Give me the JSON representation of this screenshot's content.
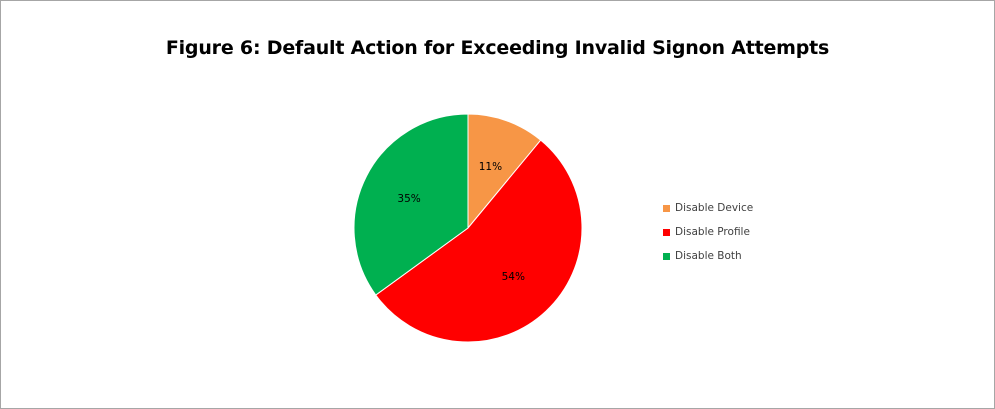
{
  "chart_data": {
    "type": "pie",
    "title": "Figure 6: Default Action for Exceeding Invalid Signon Attempts",
    "legend_position": "right",
    "slices": [
      {
        "label": "Disable Device",
        "value": 11,
        "display": "11%",
        "color": "#f79646"
      },
      {
        "label": "Disable Profile",
        "value": 54,
        "display": "54%",
        "color": "#ff0000"
      },
      {
        "label": "Disable Both",
        "value": 35,
        "display": "35%",
        "color": "#00b050"
      }
    ]
  }
}
